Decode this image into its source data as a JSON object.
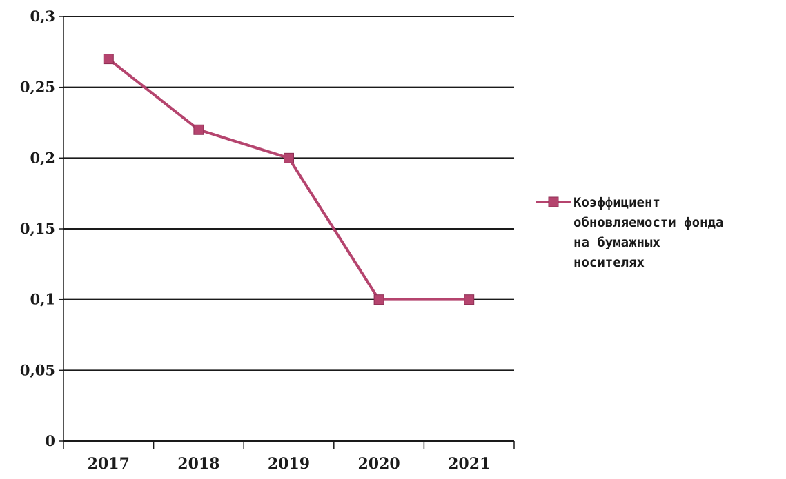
{
  "chart_data": {
    "type": "line",
    "title": "",
    "xlabel": "",
    "ylabel": "",
    "categories": [
      "2017",
      "2018",
      "2019",
      "2020",
      "2021"
    ],
    "series": [
      {
        "name": "Коэффициент обновляемости фонда на бумажных носителях",
        "name_lines": [
          "Коэффициент",
          "обновляемости фонда",
          "на бумажных",
          "носителях"
        ],
        "values": [
          0.27,
          0.22,
          0.2,
          0.1,
          0.1
        ],
        "color": "#b5446e",
        "marker": "square"
      }
    ],
    "ylim": [
      0,
      0.3
    ],
    "y_ticks": [
      0,
      0.05,
      0.1,
      0.15,
      0.2,
      0.25,
      0.3
    ],
    "y_tick_labels": [
      "0",
      "0,05",
      "0,1",
      "0,15",
      "0,2",
      "0,25",
      "0,3"
    ],
    "grid": true,
    "legend_position": "right"
  }
}
